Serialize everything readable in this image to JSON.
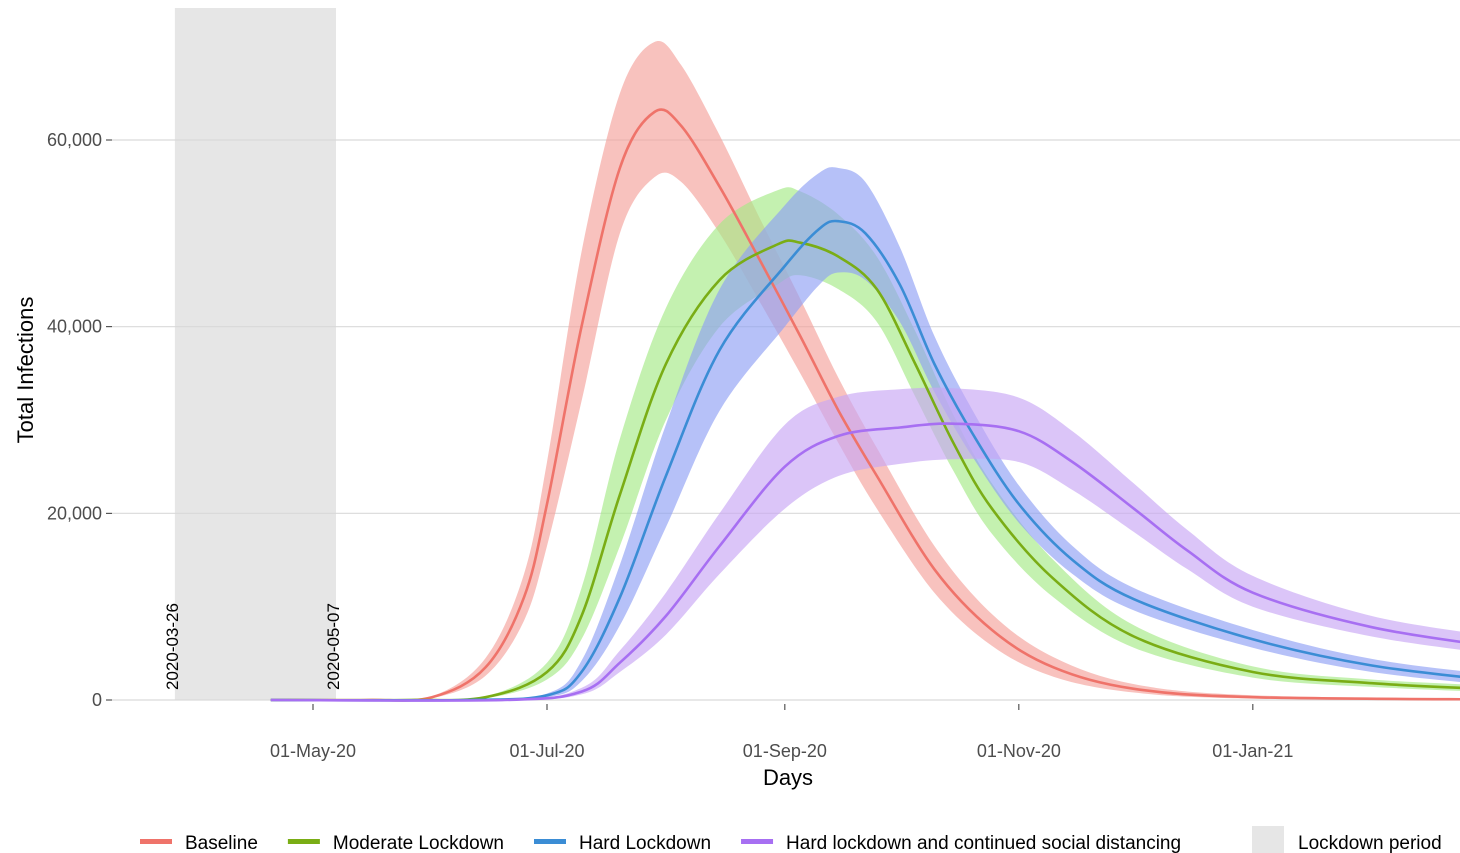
{
  "chart_data": {
    "type": "line",
    "title": "",
    "xlabel": "Days",
    "ylabel": "Total Infections",
    "x_range": [
      "2020-03-20",
      "2021-03-11"
    ],
    "ylim": [
      0,
      75000
    ],
    "y_ticks": [
      0,
      20000,
      40000,
      60000
    ],
    "y_tick_labels": [
      "0",
      "20,000",
      "40,000",
      "60,000"
    ],
    "x_ticks": [
      "2020-05-01",
      "2020-07-01",
      "2020-09-01",
      "2020-11-01",
      "2021-01-01"
    ],
    "x_tick_labels": [
      "01-May-20",
      "01-Jul-20",
      "01-Sep-20",
      "01-Nov-20",
      "01-Jan-21"
    ],
    "grid": "horizontal major",
    "legend_position": "bottom",
    "lockdown_period": {
      "start": "2020-03-26",
      "end": "2020-05-07",
      "start_label": "2020-03-26",
      "end_label": "2020-05-07",
      "legend_label": "Lockdown period",
      "color": "#e6e6e6"
    },
    "series": [
      {
        "name": "Baseline",
        "color": "#ef736a",
        "band_color": "#f4a19b",
        "points": [
          [
            "2020-04-20",
            0
          ],
          [
            "2020-05-15",
            0
          ],
          [
            "2020-06-01",
            300
          ],
          [
            "2020-06-15",
            3500
          ],
          [
            "2020-06-25",
            11000
          ],
          [
            "2020-07-01",
            21000
          ],
          [
            "2020-07-10",
            40000
          ],
          [
            "2020-07-20",
            57000
          ],
          [
            "2020-07-29",
            63000
          ],
          [
            "2020-08-05",
            61500
          ],
          [
            "2020-08-15",
            55000
          ],
          [
            "2020-08-25",
            47500
          ],
          [
            "2020-09-05",
            39000
          ],
          [
            "2020-09-15",
            31000
          ],
          [
            "2020-09-25",
            24000
          ],
          [
            "2020-10-10",
            14000
          ],
          [
            "2020-10-25",
            7500
          ],
          [
            "2020-11-10",
            3500
          ],
          [
            "2020-12-01",
            1200
          ],
          [
            "2021-01-01",
            300
          ],
          [
            "2021-03-07",
            50
          ]
        ],
        "lower": [
          [
            "2020-04-20",
            0
          ],
          [
            "2020-05-15",
            0
          ],
          [
            "2020-06-01",
            200
          ],
          [
            "2020-06-15",
            2600
          ],
          [
            "2020-06-25",
            8500
          ],
          [
            "2020-07-01",
            16500
          ],
          [
            "2020-07-10",
            32000
          ],
          [
            "2020-07-20",
            50000
          ],
          [
            "2020-07-29",
            56000
          ],
          [
            "2020-08-05",
            55500
          ],
          [
            "2020-08-15",
            50000
          ],
          [
            "2020-08-25",
            43000
          ],
          [
            "2020-09-05",
            35000
          ],
          [
            "2020-09-15",
            27500
          ],
          [
            "2020-09-25",
            20500
          ],
          [
            "2020-10-10",
            11500
          ],
          [
            "2020-10-25",
            5800
          ],
          [
            "2020-11-10",
            2500
          ],
          [
            "2020-12-01",
            800
          ],
          [
            "2021-01-01",
            150
          ],
          [
            "2021-03-07",
            0
          ]
        ],
        "upper": [
          [
            "2020-04-20",
            0
          ],
          [
            "2020-05-15",
            0
          ],
          [
            "2020-06-01",
            400
          ],
          [
            "2020-06-15",
            4500
          ],
          [
            "2020-06-25",
            13500
          ],
          [
            "2020-07-01",
            25500
          ],
          [
            "2020-07-10",
            48000
          ],
          [
            "2020-07-20",
            65000
          ],
          [
            "2020-07-29",
            70500
          ],
          [
            "2020-08-05",
            68000
          ],
          [
            "2020-08-15",
            60500
          ],
          [
            "2020-08-25",
            52000
          ],
          [
            "2020-09-05",
            43000
          ],
          [
            "2020-09-15",
            34500
          ],
          [
            "2020-09-25",
            27000
          ],
          [
            "2020-10-10",
            16500
          ],
          [
            "2020-10-25",
            9200
          ],
          [
            "2020-11-10",
            4600
          ],
          [
            "2020-12-01",
            1700
          ],
          [
            "2021-01-01",
            500
          ],
          [
            "2021-03-07",
            100
          ]
        ]
      },
      {
        "name": "Moderate Lockdown",
        "color": "#7aad15",
        "band_color": "#a5ea86",
        "points": [
          [
            "2020-04-20",
            0
          ],
          [
            "2020-05-25",
            0
          ],
          [
            "2020-06-15",
            300
          ],
          [
            "2020-07-01",
            3000
          ],
          [
            "2020-07-10",
            9000
          ],
          [
            "2020-07-20",
            22000
          ],
          [
            "2020-08-01",
            36000
          ],
          [
            "2020-08-15",
            45000
          ],
          [
            "2020-08-30",
            48800
          ],
          [
            "2020-09-05",
            49000
          ],
          [
            "2020-09-15",
            47500
          ],
          [
            "2020-09-25",
            44000
          ],
          [
            "2020-10-05",
            36000
          ],
          [
            "2020-10-15",
            27500
          ],
          [
            "2020-10-25",
            20500
          ],
          [
            "2020-11-10",
            13000
          ],
          [
            "2020-12-01",
            6800
          ],
          [
            "2021-01-01",
            3000
          ],
          [
            "2021-02-01",
            1800
          ],
          [
            "2021-03-07",
            1100
          ]
        ],
        "lower": [
          [
            "2020-04-20",
            0
          ],
          [
            "2020-05-25",
            0
          ],
          [
            "2020-06-15",
            200
          ],
          [
            "2020-07-01",
            2200
          ],
          [
            "2020-07-10",
            6500
          ],
          [
            "2020-07-20",
            16500
          ],
          [
            "2020-08-01",
            30000
          ],
          [
            "2020-08-15",
            40000
          ],
          [
            "2020-08-30",
            44500
          ],
          [
            "2020-09-05",
            45500
          ],
          [
            "2020-09-15",
            44000
          ],
          [
            "2020-09-25",
            40500
          ],
          [
            "2020-10-05",
            32500
          ],
          [
            "2020-10-15",
            24500
          ],
          [
            "2020-10-25",
            17800
          ],
          [
            "2020-11-10",
            11000
          ],
          [
            "2020-12-01",
            5600
          ],
          [
            "2021-01-01",
            2400
          ],
          [
            "2021-02-01",
            1400
          ],
          [
            "2021-03-07",
            800
          ]
        ],
        "upper": [
          [
            "2020-04-20",
            0
          ],
          [
            "2020-05-25",
            0
          ],
          [
            "2020-06-15",
            400
          ],
          [
            "2020-07-01",
            4000
          ],
          [
            "2020-07-10",
            12000
          ],
          [
            "2020-07-20",
            28000
          ],
          [
            "2020-08-01",
            42000
          ],
          [
            "2020-08-15",
            51000
          ],
          [
            "2020-08-30",
            54600
          ],
          [
            "2020-09-05",
            54500
          ],
          [
            "2020-09-15",
            52000
          ],
          [
            "2020-09-25",
            47500
          ],
          [
            "2020-10-05",
            39500
          ],
          [
            "2020-10-15",
            30500
          ],
          [
            "2020-10-25",
            23200
          ],
          [
            "2020-11-10",
            15000
          ],
          [
            "2020-12-01",
            8000
          ],
          [
            "2021-01-01",
            3600
          ],
          [
            "2021-02-01",
            2200
          ],
          [
            "2021-03-07",
            1500
          ]
        ]
      },
      {
        "name": "Hard Lockdown",
        "color": "#3b8dd5",
        "band_color": "#8f9ff4",
        "points": [
          [
            "2020-04-20",
            0
          ],
          [
            "2020-06-10",
            0
          ],
          [
            "2020-07-01",
            500
          ],
          [
            "2020-07-10",
            3000
          ],
          [
            "2020-07-20",
            11000
          ],
          [
            "2020-08-01",
            24000
          ],
          [
            "2020-08-15",
            37500
          ],
          [
            "2020-09-01",
            46500
          ],
          [
            "2020-09-10",
            50500
          ],
          [
            "2020-09-15",
            51300
          ],
          [
            "2020-09-22",
            50000
          ],
          [
            "2020-10-01",
            44500
          ],
          [
            "2020-10-10",
            36000
          ],
          [
            "2020-10-20",
            28500
          ],
          [
            "2020-11-01",
            21000
          ],
          [
            "2020-11-15",
            15000
          ],
          [
            "2020-12-01",
            10800
          ],
          [
            "2021-01-01",
            6500
          ],
          [
            "2021-02-01",
            3700
          ],
          [
            "2021-03-07",
            2000
          ]
        ],
        "lower": [
          [
            "2020-04-20",
            0
          ],
          [
            "2020-06-10",
            0
          ],
          [
            "2020-07-01",
            300
          ],
          [
            "2020-07-10",
            2000
          ],
          [
            "2020-07-20",
            8000
          ],
          [
            "2020-08-01",
            18500
          ],
          [
            "2020-08-15",
            31000
          ],
          [
            "2020-09-01",
            40000
          ],
          [
            "2020-09-10",
            44500
          ],
          [
            "2020-09-15",
            45800
          ],
          [
            "2020-09-22",
            45000
          ],
          [
            "2020-10-01",
            40500
          ],
          [
            "2020-10-10",
            33000
          ],
          [
            "2020-10-20",
            26000
          ],
          [
            "2020-11-01",
            19000
          ],
          [
            "2020-11-15",
            13500
          ],
          [
            "2020-12-01",
            9600
          ],
          [
            "2021-01-01",
            5600
          ],
          [
            "2021-02-01",
            3000
          ],
          [
            "2021-03-07",
            1500
          ]
        ],
        "upper": [
          [
            "2020-04-20",
            0
          ],
          [
            "2020-06-10",
            0
          ],
          [
            "2020-07-01",
            700
          ],
          [
            "2020-07-10",
            4200
          ],
          [
            "2020-07-20",
            14500
          ],
          [
            "2020-08-01",
            29500
          ],
          [
            "2020-08-15",
            44000
          ],
          [
            "2020-09-01",
            53000
          ],
          [
            "2020-09-10",
            56500
          ],
          [
            "2020-09-15",
            57000
          ],
          [
            "2020-09-22",
            55500
          ],
          [
            "2020-10-01",
            48500
          ],
          [
            "2020-10-10",
            39000
          ],
          [
            "2020-10-20",
            31000
          ],
          [
            "2020-11-01",
            23000
          ],
          [
            "2020-11-15",
            16500
          ],
          [
            "2020-12-01",
            12000
          ],
          [
            "2021-01-01",
            7500
          ],
          [
            "2021-02-01",
            4400
          ],
          [
            "2021-03-07",
            2600
          ]
        ]
      },
      {
        "name": "Hard lockdown and continued social distancing",
        "color": "#a76ff2",
        "band_color": "#c8a6f4",
        "points": [
          [
            "2020-04-20",
            0
          ],
          [
            "2020-06-20",
            0
          ],
          [
            "2020-07-10",
            900
          ],
          [
            "2020-07-20",
            4000
          ],
          [
            "2020-08-01",
            9000
          ],
          [
            "2020-08-15",
            16500
          ],
          [
            "2020-09-01",
            25000
          ],
          [
            "2020-09-15",
            28300
          ],
          [
            "2020-10-01",
            29200
          ],
          [
            "2020-10-15",
            29600
          ],
          [
            "2020-11-01",
            28800
          ],
          [
            "2020-11-15",
            25500
          ],
          [
            "2020-12-01",
            20500
          ],
          [
            "2020-12-15",
            16000
          ],
          [
            "2021-01-01",
            11500
          ],
          [
            "2021-02-01",
            7800
          ],
          [
            "2021-03-07",
            5600
          ]
        ],
        "lower": [
          [
            "2020-04-20",
            0
          ],
          [
            "2020-06-20",
            0
          ],
          [
            "2020-07-10",
            600
          ],
          [
            "2020-07-20",
            3000
          ],
          [
            "2020-08-01",
            7000
          ],
          [
            "2020-08-15",
            13500
          ],
          [
            "2020-09-01",
            20500
          ],
          [
            "2020-09-15",
            24000
          ],
          [
            "2020-10-01",
            25300
          ],
          [
            "2020-10-15",
            25800
          ],
          [
            "2020-11-01",
            25500
          ],
          [
            "2020-11-15",
            22500
          ],
          [
            "2020-12-01",
            18000
          ],
          [
            "2020-12-15",
            14000
          ],
          [
            "2021-01-01",
            10000
          ],
          [
            "2021-02-01",
            6800
          ],
          [
            "2021-03-07",
            4800
          ]
        ],
        "upper": [
          [
            "2020-04-20",
            0
          ],
          [
            "2020-06-20",
            0
          ],
          [
            "2020-07-10",
            1300
          ],
          [
            "2020-07-20",
            5300
          ],
          [
            "2020-08-01",
            11500
          ],
          [
            "2020-08-15",
            20000
          ],
          [
            "2020-09-01",
            29500
          ],
          [
            "2020-09-15",
            32500
          ],
          [
            "2020-10-01",
            33300
          ],
          [
            "2020-10-15",
            33400
          ],
          [
            "2020-11-01",
            32400
          ],
          [
            "2020-11-15",
            28800
          ],
          [
            "2020-12-01",
            23200
          ],
          [
            "2020-12-15",
            18200
          ],
          [
            "2021-01-01",
            13300
          ],
          [
            "2021-02-01",
            9000
          ],
          [
            "2021-03-07",
            6700
          ]
        ]
      }
    ]
  }
}
